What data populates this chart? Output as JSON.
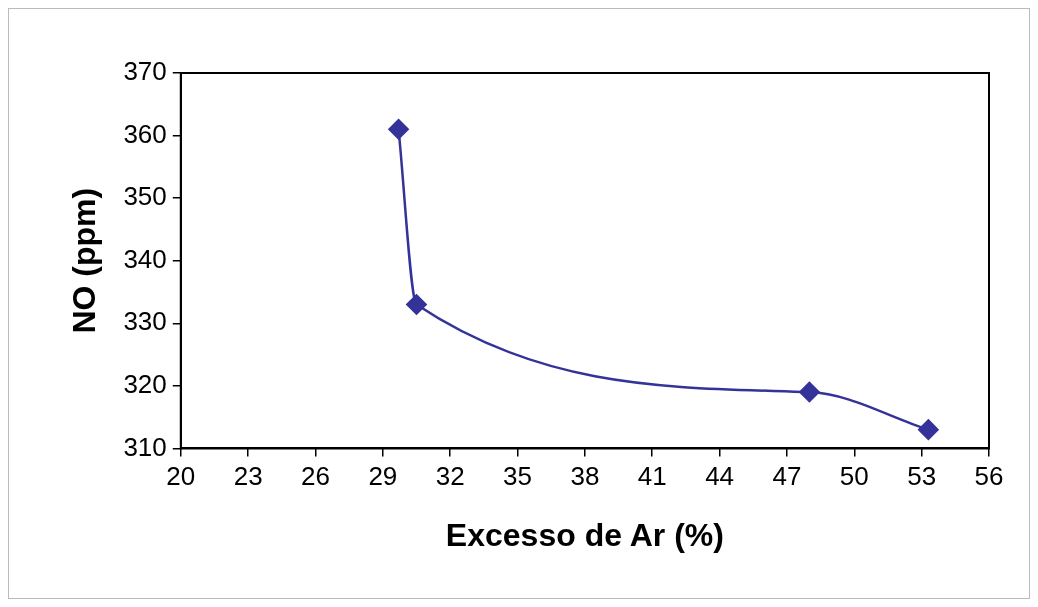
{
  "chart_data": {
    "type": "line",
    "xlabel": "Excesso de Ar (%)",
    "ylabel": "NO (ppm)",
    "x": [
      29.7,
      30.5,
      48.0,
      53.3
    ],
    "series": [
      {
        "color": "#33339a",
        "values": [
          361,
          333,
          319,
          313
        ]
      }
    ],
    "xlim": [
      20,
      56
    ],
    "xticks": [
      20,
      23,
      26,
      29,
      32,
      35,
      38,
      41,
      44,
      47,
      50,
      53,
      56
    ],
    "ylim": [
      310,
      370
    ],
    "yticks": [
      310,
      320,
      330,
      340,
      350,
      360,
      370
    ],
    "grid": false,
    "legend": false,
    "marker": "diamond",
    "line_style": "solid"
  }
}
